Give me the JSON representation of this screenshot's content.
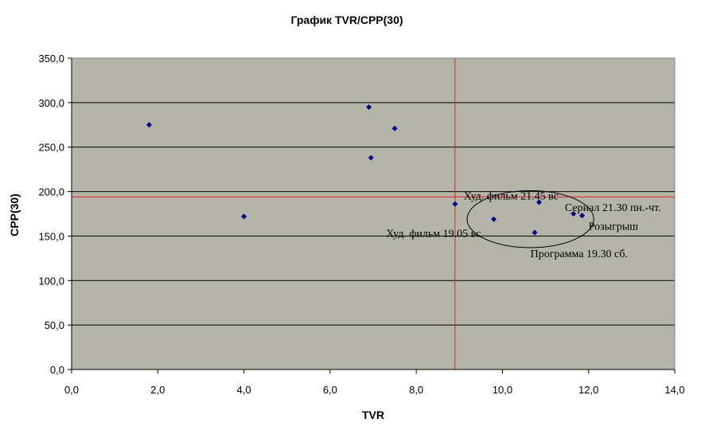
{
  "chart_data": {
    "type": "scatter",
    "title": "График TVR/CPP(30)",
    "xlabel": "TVR",
    "ylabel": "CPP(30)",
    "xlim": [
      0,
      14
    ],
    "ylim": [
      0,
      350
    ],
    "x_ticks": [
      "0,0",
      "2,0",
      "4,0",
      "6,0",
      "8,0",
      "10,0",
      "12,0",
      "14,0"
    ],
    "y_ticks": [
      "0,0",
      "50,0",
      "100,0",
      "150,0",
      "200,0",
      "250,0",
      "300,0",
      "350,0"
    ],
    "grid": "horizontal",
    "legend": "none",
    "plot_background": "#b4b4a8",
    "point_color": "#00008b",
    "reference_line_color": "#e8201c",
    "reference_lines": {
      "x": 8.9,
      "y": 194
    },
    "points": [
      {
        "x": 1.8,
        "y": 275
      },
      {
        "x": 4.0,
        "y": 172
      },
      {
        "x": 6.9,
        "y": 295
      },
      {
        "x": 6.95,
        "y": 238
      },
      {
        "x": 7.5,
        "y": 271
      },
      {
        "x": 8.9,
        "y": 186
      },
      {
        "x": 9.8,
        "y": 169
      },
      {
        "x": 10.75,
        "y": 154
      },
      {
        "x": 10.85,
        "y": 188
      },
      {
        "x": 11.65,
        "y": 175
      },
      {
        "x": 11.85,
        "y": 173
      }
    ],
    "annotations": [
      {
        "text": "Худ. фильм 21.45 вс",
        "x": 9.1,
        "y": 191
      },
      {
        "text": "Сериал 21.30 пн.-чт.",
        "x": 11.45,
        "y": 178
      },
      {
        "text": "Розыгрыш",
        "x": 12.0,
        "y": 157
      },
      {
        "text": "Худ. фильм 19.05 вс",
        "x": 7.3,
        "y": 149
      },
      {
        "text": "Программа 19.30 сб.",
        "x": 10.65,
        "y": 126
      }
    ],
    "highlight_ellipse": {
      "cx": 10.65,
      "cy": 169,
      "rx": 1.47,
      "ry": 32
    }
  }
}
